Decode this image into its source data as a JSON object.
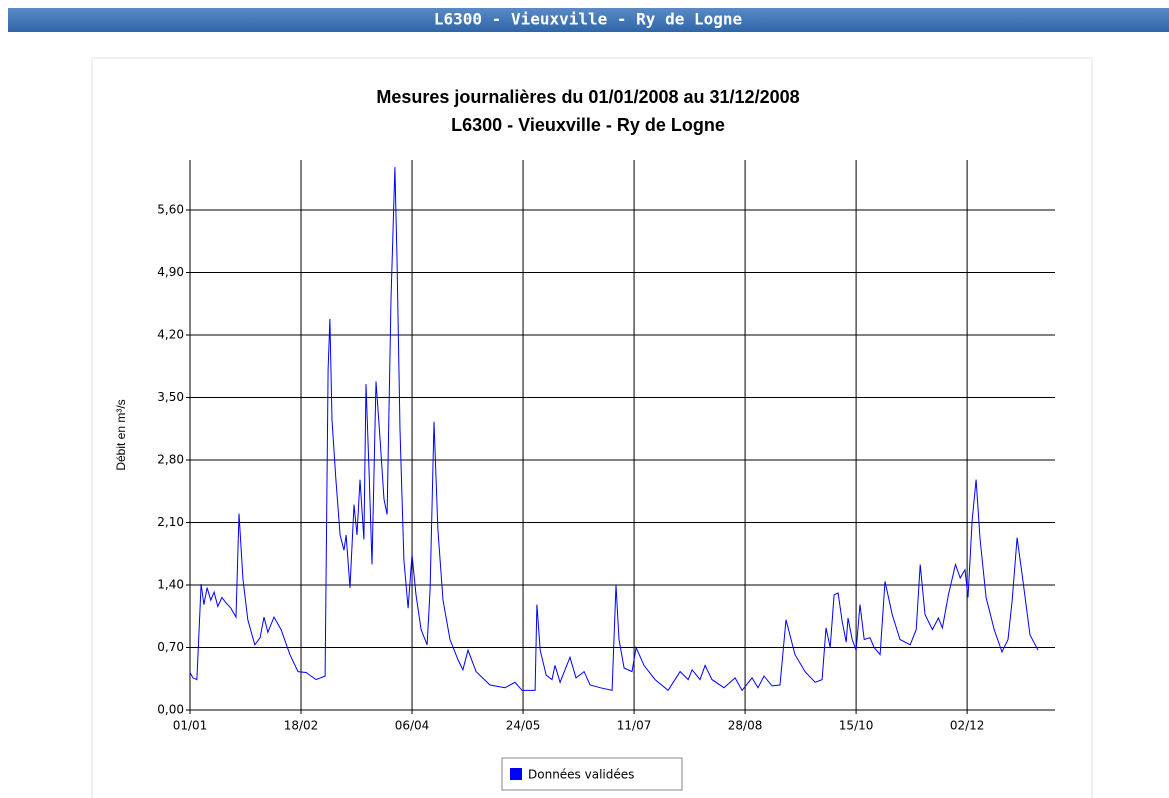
{
  "header": {
    "title": "L6300 - Vieuxville - Ry de Logne"
  },
  "chart_data": {
    "type": "line",
    "title": "Mesures journalières du 01/01/2008 au 31/12/2008",
    "subtitle": "L6300 - Vieuxville - Ry de Logne",
    "y_label": "Débit en m³/s",
    "xlim": [
      0,
      374
    ],
    "ylim": [
      0,
      6.16
    ],
    "xticks": [
      {
        "value": 0,
        "label": "01/01"
      },
      {
        "value": 48,
        "label": "18/02"
      },
      {
        "value": 96,
        "label": "06/04"
      },
      {
        "value": 144,
        "label": "24/05"
      },
      {
        "value": 192,
        "label": "11/07"
      },
      {
        "value": 240,
        "label": "28/08"
      },
      {
        "value": 288,
        "label": "15/10"
      },
      {
        "value": 336,
        "label": "02/12"
      }
    ],
    "yticks": [
      {
        "value": 0,
        "label": "0,00"
      },
      {
        "value": 0.7,
        "label": "0,70"
      },
      {
        "value": 1.4,
        "label": "1,40"
      },
      {
        "value": 2.1,
        "label": "2,10"
      },
      {
        "value": 2.8,
        "label": "2,80"
      },
      {
        "value": 3.5,
        "label": "3,50"
      },
      {
        "value": 4.2,
        "label": "4,20"
      },
      {
        "value": 4.9,
        "label": "4,90"
      },
      {
        "value": 5.6,
        "label": "5,60"
      }
    ],
    "grid": true,
    "legend": "bottom",
    "x": [
      0,
      1.3,
      3,
      4.8,
      6,
      7.4,
      9,
      10.4,
      12,
      13.8,
      15.6,
      17.7,
      19.9,
      21.2,
      22.9,
      25,
      28,
      30.3,
      32,
      33.7,
      36.3,
      39.4,
      43.2,
      46.7,
      50.2,
      54.5,
      58.4,
      59.7,
      60.5,
      61.4,
      63.1,
      64.9,
      66.6,
      67.5,
      69.2,
      70.9,
      72.2,
      73.5,
      75.2,
      76.1,
      77.4,
      78.7,
      80.4,
      82.2,
      83.9,
      85.2,
      86.9,
      88.6,
      89.5,
      90.8,
      92.5,
      94.3,
      96,
      97.7,
      99.9,
      102.5,
      103.8,
      105.5,
      107.2,
      109.4,
      112.4,
      115.9,
      118,
      120.2,
      123.7,
      129.7,
      136.2,
      140.5,
      143.6,
      149.2,
      150,
      151.4,
      154,
      156.5,
      157.8,
      160,
      162.6,
      164.3,
      166.9,
      170.4,
      173,
      177.3,
      182.5,
      184.2,
      185.5,
      187.7,
      191.1,
      192.9,
      196.3,
      201.1,
      206.7,
      211.9,
      215.4,
      217.1,
      220.5,
      222.7,
      225.7,
      230.9,
      235.7,
      238.7,
      243,
      245.6,
      248.2,
      251.7,
      255.1,
      257.7,
      261.6,
      265.9,
      270.3,
      273.3,
      275,
      276.8,
      278.5,
      280.2,
      282,
      283.7,
      284.5,
      286.3,
      288,
      289.7,
      291.5,
      294,
      295.8,
      298.4,
      300.5,
      303.6,
      307,
      311.4,
      314,
      315.7,
      317.8,
      321,
      323.6,
      325.3,
      327.9,
      331,
      333,
      335.1,
      336.4,
      338.2,
      339.9,
      341.6,
      344.2,
      347.7,
      351.1,
      353.7,
      355.5,
      357.6,
      359.8,
      363.2,
      366.7
    ],
    "series": [
      {
        "name": "Données validées",
        "color": "#0000ff",
        "values": [
          0.42,
          0.36,
          0.34,
          1.41,
          1.18,
          1.37,
          1.23,
          1.32,
          1.16,
          1.26,
          1.2,
          1.14,
          1.04,
          2.2,
          1.46,
          1.01,
          0.73,
          0.81,
          1.04,
          0.87,
          1.04,
          0.9,
          0.62,
          0.43,
          0.42,
          0.34,
          0.38,
          3.81,
          4.38,
          3.25,
          2.58,
          1.96,
          1.79,
          1.96,
          1.37,
          2.3,
          1.96,
          2.58,
          1.91,
          3.65,
          2.69,
          1.63,
          3.68,
          3.03,
          2.36,
          2.19,
          4.6,
          6.08,
          5.05,
          3.14,
          1.68,
          1.14,
          1.74,
          1.29,
          0.9,
          0.73,
          1.35,
          3.23,
          2.02,
          1.23,
          0.79,
          0.56,
          0.45,
          0.67,
          0.43,
          0.28,
          0.25,
          0.31,
          0.22,
          0.22,
          1.18,
          0.67,
          0.39,
          0.34,
          0.5,
          0.31,
          0.48,
          0.59,
          0.36,
          0.43,
          0.28,
          0.25,
          0.22,
          1.4,
          0.79,
          0.47,
          0.43,
          0.7,
          0.5,
          0.34,
          0.22,
          0.43,
          0.34,
          0.45,
          0.34,
          0.5,
          0.34,
          0.25,
          0.36,
          0.22,
          0.36,
          0.25,
          0.38,
          0.27,
          0.28,
          1.01,
          0.62,
          0.43,
          0.31,
          0.34,
          0.92,
          0.7,
          1.29,
          1.31,
          0.99,
          0.76,
          1.03,
          0.79,
          0.67,
          1.18,
          0.79,
          0.81,
          0.7,
          0.62,
          1.44,
          1.07,
          0.79,
          0.73,
          0.9,
          1.63,
          1.07,
          0.9,
          1.03,
          0.92,
          1.29,
          1.63,
          1.48,
          1.57,
          1.26,
          2.13,
          2.58,
          1.91,
          1.26,
          0.9,
          0.65,
          0.79,
          1.23,
          1.93,
          1.51,
          0.84,
          0.67
        ]
      }
    ]
  }
}
